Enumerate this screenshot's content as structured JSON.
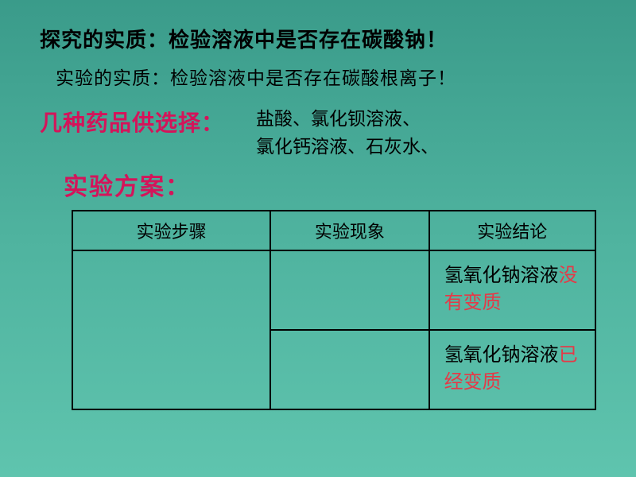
{
  "line1": "探究的实质：检验溶液中是否存在碳酸钠！",
  "line2": "实验的实质：检验溶液中是否存在碳酸根离子！",
  "selectLabel": "几种药品供选择：",
  "reagentsLine1": "盐酸、氯化钡溶液、",
  "reagentsLine2": "氯化钙溶液、石灰水、",
  "planLabel": "实验方案：",
  "table": {
    "headers": {
      "col1": "实验步骤",
      "col2": "实验现象",
      "col3": "实验结论"
    },
    "result1": {
      "prefix": "氢氧化钠溶液",
      "highlight": "没有变质"
    },
    "result2": {
      "prefix": "氢氧化钠溶液",
      "highlight": "已经变质"
    }
  },
  "colors": {
    "redLabel": "#d4145a",
    "highlightRed": "#e53947",
    "text": "#000000"
  }
}
